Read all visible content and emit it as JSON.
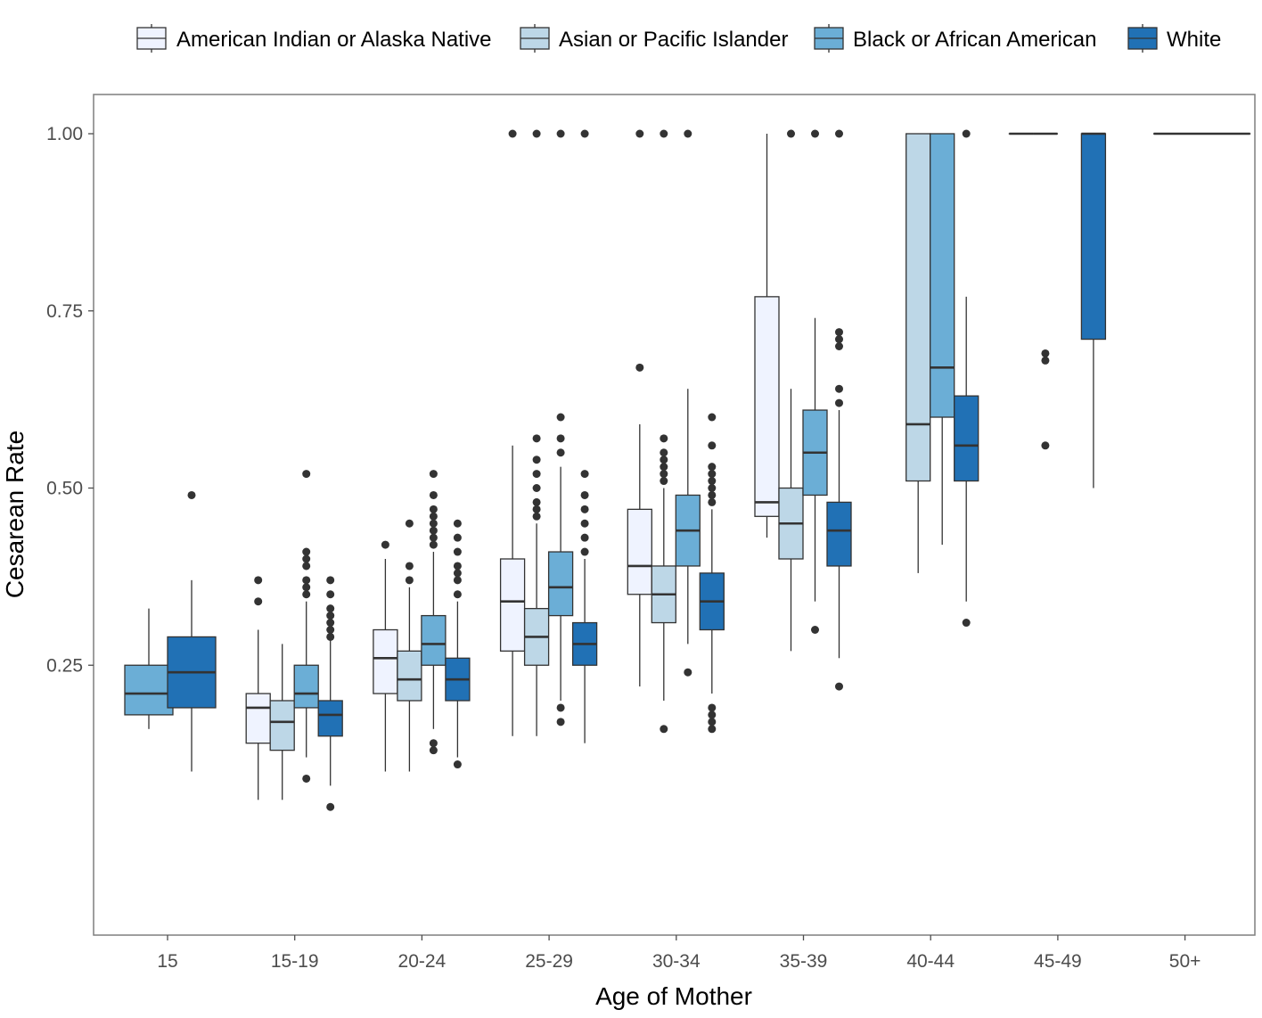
{
  "chart_data": {
    "type": "boxplot",
    "xlabel": "Age of Mother",
    "ylabel": "Cesarean Rate",
    "categories": [
      "15",
      "15-19",
      "20-24",
      "25-29",
      "30-34",
      "35-39",
      "40-44",
      "45-49",
      "50+"
    ],
    "y_ticks": [
      "0.25",
      "0.50",
      "0.75",
      "1.00"
    ],
    "ylim": [
      0.03,
      1.07
    ],
    "grid": false,
    "legend_position": "top",
    "series": [
      {
        "name": "American Indian or Alaska Native",
        "color": "#eff3ff",
        "boxes": [
          null,
          {
            "whisker_low": 0.06,
            "q1": 0.14,
            "median": 0.19,
            "q3": 0.21,
            "whisker_high": 0.3,
            "outliers": [
              0.34,
              0.37
            ]
          },
          {
            "whisker_low": 0.1,
            "q1": 0.21,
            "median": 0.26,
            "q3": 0.3,
            "whisker_high": 0.4,
            "outliers": [
              0.42
            ]
          },
          {
            "whisker_low": 0.15,
            "q1": 0.27,
            "median": 0.34,
            "q3": 0.4,
            "whisker_high": 0.56,
            "outliers": [
              1.0
            ]
          },
          {
            "whisker_low": 0.22,
            "q1": 0.35,
            "median": 0.39,
            "q3": 0.47,
            "whisker_high": 0.59,
            "outliers": [
              0.67,
              1.0
            ]
          },
          {
            "whisker_low": 0.43,
            "q1": 0.46,
            "median": 0.48,
            "q3": 0.77,
            "whisker_high": 1.0,
            "outliers": []
          },
          null,
          {
            "whisker_low": 1.0,
            "q1": 1.0,
            "median": 1.0,
            "q3": 1.0,
            "whisker_high": 1.0,
            "outliers": []
          },
          null
        ]
      },
      {
        "name": "Asian or Pacific Islander",
        "color": "#bdd7e7",
        "boxes": [
          null,
          {
            "whisker_low": 0.06,
            "q1": 0.13,
            "median": 0.17,
            "q3": 0.2,
            "whisker_high": 0.28,
            "outliers": []
          },
          {
            "whisker_low": 0.1,
            "q1": 0.2,
            "median": 0.23,
            "q3": 0.27,
            "whisker_high": 0.36,
            "outliers": [
              0.37,
              0.39,
              0.45
            ]
          },
          {
            "whisker_low": 0.15,
            "q1": 0.25,
            "median": 0.29,
            "q3": 0.33,
            "whisker_high": 0.45,
            "outliers": [
              0.46,
              0.47,
              0.48,
              0.5,
              0.52,
              0.54,
              0.57,
              1.0
            ]
          },
          {
            "whisker_low": 0.2,
            "q1": 0.31,
            "median": 0.35,
            "q3": 0.39,
            "whisker_high": 0.5,
            "outliers": [
              0.16,
              0.51,
              0.52,
              0.53,
              0.54,
              0.55,
              0.57,
              1.0
            ]
          },
          {
            "whisker_low": 0.27,
            "q1": 0.4,
            "median": 0.45,
            "q3": 0.5,
            "whisker_high": 0.64,
            "outliers": [
              1.0
            ]
          },
          {
            "whisker_low": 0.38,
            "q1": 0.51,
            "median": 0.59,
            "q3": 1.0,
            "whisker_high": 1.0,
            "outliers": []
          },
          {
            "whisker_low": 1.0,
            "q1": 1.0,
            "median": 1.0,
            "q3": 1.0,
            "whisker_high": 1.0,
            "outliers": [
              0.56,
              0.68,
              0.69
            ]
          },
          null
        ]
      },
      {
        "name": "Black or African American",
        "color": "#6baed6",
        "boxes": [
          {
            "whisker_low": 0.16,
            "q1": 0.18,
            "median": 0.21,
            "q3": 0.25,
            "whisker_high": 0.33,
            "outliers": []
          },
          {
            "whisker_low": 0.12,
            "q1": 0.19,
            "median": 0.21,
            "q3": 0.25,
            "whisker_high": 0.34,
            "outliers": [
              0.09,
              0.35,
              0.36,
              0.37,
              0.39,
              0.4,
              0.41,
              0.52
            ]
          },
          {
            "whisker_low": 0.16,
            "q1": 0.25,
            "median": 0.28,
            "q3": 0.32,
            "whisker_high": 0.41,
            "outliers": [
              0.13,
              0.14,
              0.42,
              0.43,
              0.44,
              0.45,
              0.46,
              0.47,
              0.49,
              0.52
            ]
          },
          {
            "whisker_low": 0.2,
            "q1": 0.32,
            "median": 0.36,
            "q3": 0.41,
            "whisker_high": 0.53,
            "outliers": [
              0.17,
              0.19,
              0.55,
              0.57,
              0.6,
              1.0
            ]
          },
          {
            "whisker_low": 0.28,
            "q1": 0.39,
            "median": 0.44,
            "q3": 0.49,
            "whisker_high": 0.64,
            "outliers": [
              0.24,
              1.0
            ]
          },
          {
            "whisker_low": 0.34,
            "q1": 0.49,
            "median": 0.55,
            "q3": 0.61,
            "whisker_high": 0.74,
            "outliers": [
              0.3,
              1.0
            ]
          },
          {
            "whisker_low": 0.42,
            "q1": 0.6,
            "median": 0.67,
            "q3": 1.0,
            "whisker_high": 1.0,
            "outliers": []
          },
          null,
          null
        ]
      },
      {
        "name": "White",
        "color": "#2171b5",
        "boxes": [
          {
            "whisker_low": 0.1,
            "q1": 0.19,
            "median": 0.24,
            "q3": 0.29,
            "whisker_high": 0.37,
            "outliers": [
              0.49
            ]
          },
          {
            "whisker_low": 0.08,
            "q1": 0.15,
            "median": 0.18,
            "q3": 0.2,
            "whisker_high": 0.29,
            "outliers": [
              0.05,
              0.29,
              0.3,
              0.31,
              0.32,
              0.33,
              0.35,
              0.37
            ]
          },
          {
            "whisker_low": 0.12,
            "q1": 0.2,
            "median": 0.23,
            "q3": 0.26,
            "whisker_high": 0.34,
            "outliers": [
              0.11,
              0.35,
              0.37,
              0.38,
              0.39,
              0.41,
              0.43,
              0.45
            ]
          },
          {
            "whisker_low": 0.14,
            "q1": 0.25,
            "median": 0.28,
            "q3": 0.31,
            "whisker_high": 0.4,
            "outliers": [
              0.41,
              0.43,
              0.45,
              0.47,
              0.49,
              0.52,
              1.0
            ]
          },
          {
            "whisker_low": 0.21,
            "q1": 0.3,
            "median": 0.34,
            "q3": 0.38,
            "whisker_high": 0.47,
            "outliers": [
              0.16,
              0.17,
              0.18,
              0.19,
              0.48,
              0.49,
              0.5,
              0.51,
              0.52,
              0.53,
              0.56,
              0.6
            ]
          },
          {
            "whisker_low": 0.26,
            "q1": 0.39,
            "median": 0.44,
            "q3": 0.48,
            "whisker_high": 0.61,
            "outliers": [
              0.22,
              0.62,
              0.64,
              0.7,
              0.71,
              0.72,
              1.0
            ]
          },
          {
            "whisker_low": 0.34,
            "q1": 0.51,
            "median": 0.56,
            "q3": 0.63,
            "whisker_high": 0.77,
            "outliers": [
              0.31,
              1.0
            ]
          },
          {
            "whisker_low": 0.5,
            "q1": 0.71,
            "median": 1.0,
            "q3": 1.0,
            "whisker_high": 1.0,
            "outliers": []
          },
          {
            "whisker_low": 1.0,
            "q1": 1.0,
            "median": 1.0,
            "q3": 1.0,
            "whisker_high": 1.0,
            "outliers": []
          }
        ]
      }
    ]
  }
}
